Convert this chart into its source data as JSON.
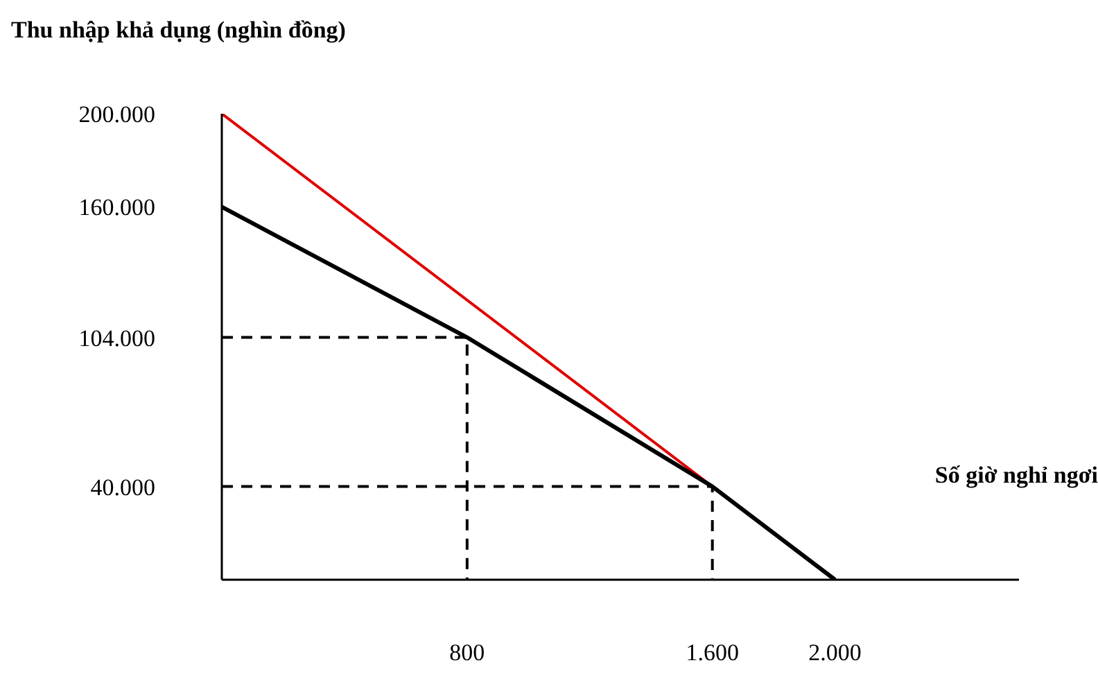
{
  "chart_data": {
    "type": "line",
    "ylabel": "Thu nhập khả dụng (nghìn đồng)",
    "xlabel": "Số giờ nghỉ ngơi",
    "marker": "none",
    "xlim": [
      0,
      2600
    ],
    "ylim": [
      0,
      200000
    ],
    "xticks": [
      800,
      {
        "value": 1600,
        "label": "1.600"
      },
      {
        "value": 2000,
        "label": "2.000"
      }
    ],
    "yticks": [
      {
        "value": 40000,
        "label": "40.000"
      },
      {
        "value": 104000,
        "label": "104.000"
      },
      {
        "value": 160000,
        "label": "160.000"
      },
      {
        "value": 200000,
        "label": "200.000"
      }
    ],
    "series": [
      {
        "color": "#e00000",
        "x": [
          0,
          2000
        ],
        "values": [
          200000,
          0
        ]
      },
      {
        "color": "#000000",
        "x": [
          0,
          800,
          1600,
          2000
        ],
        "values": [
          160000,
          104000,
          40000,
          0
        ]
      },
      {
        "color": "#000000",
        "line_style": "dashed",
        "x": [
          0,
          800,
          800
        ],
        "values": [
          104000,
          104000,
          0
        ]
      },
      {
        "color": "#000000",
        "line_style": "dashed",
        "x": [
          0,
          1600,
          1600
        ],
        "values": [
          40000,
          40000,
          0
        ]
      }
    ]
  }
}
